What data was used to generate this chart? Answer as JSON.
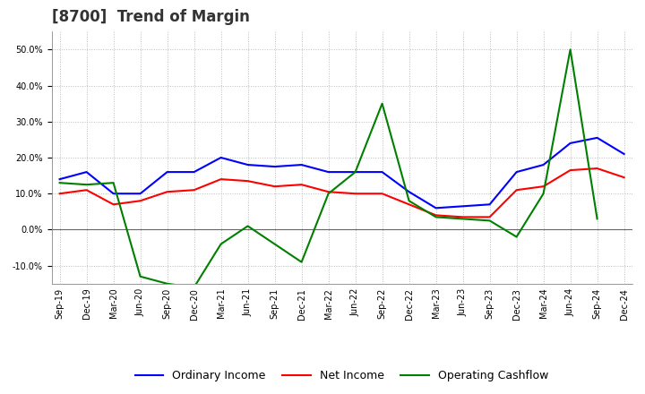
{
  "title": "[8700]  Trend of Margin",
  "x_labels": [
    "Sep-19",
    "Dec-19",
    "Mar-20",
    "Jun-20",
    "Sep-20",
    "Dec-20",
    "Mar-21",
    "Jun-21",
    "Sep-21",
    "Dec-21",
    "Mar-22",
    "Jun-22",
    "Sep-22",
    "Dec-22",
    "Mar-23",
    "Jun-23",
    "Sep-23",
    "Dec-23",
    "Mar-24",
    "Jun-24",
    "Sep-24",
    "Dec-24"
  ],
  "ordinary_income": [
    14.0,
    16.0,
    10.0,
    10.0,
    16.0,
    16.0,
    20.0,
    18.0,
    17.5,
    18.0,
    16.0,
    16.0,
    16.0,
    10.5,
    6.0,
    6.5,
    7.0,
    16.0,
    18.0,
    24.0,
    25.5,
    21.0
  ],
  "net_income": [
    10.0,
    11.0,
    7.0,
    8.0,
    10.5,
    11.0,
    14.0,
    13.5,
    12.0,
    12.5,
    10.5,
    10.0,
    10.0,
    7.0,
    4.0,
    3.5,
    3.5,
    11.0,
    12.0,
    16.5,
    17.0,
    14.5
  ],
  "operating_cashflow": [
    13.0,
    12.5,
    13.0,
    -13.0,
    -15.0,
    -16.0,
    -4.0,
    1.0,
    -4.0,
    -9.0,
    10.0,
    16.0,
    35.0,
    8.0,
    3.5,
    3.0,
    2.5,
    -2.0,
    10.0,
    50.0,
    3.0,
    null
  ],
  "ylim": [
    -15.0,
    55.0
  ],
  "yticks": [
    -10.0,
    0.0,
    10.0,
    20.0,
    30.0,
    40.0,
    50.0
  ],
  "colors": {
    "ordinary_income": "#0000FF",
    "net_income": "#FF0000",
    "operating_cashflow": "#008000"
  },
  "legend_labels": [
    "Ordinary Income",
    "Net Income",
    "Operating Cashflow"
  ],
  "background_color": "#FFFFFF",
  "grid_color": "#AAAAAA",
  "title_fontsize": 12,
  "tick_fontsize": 7,
  "legend_fontsize": 9,
  "linewidth": 1.5
}
